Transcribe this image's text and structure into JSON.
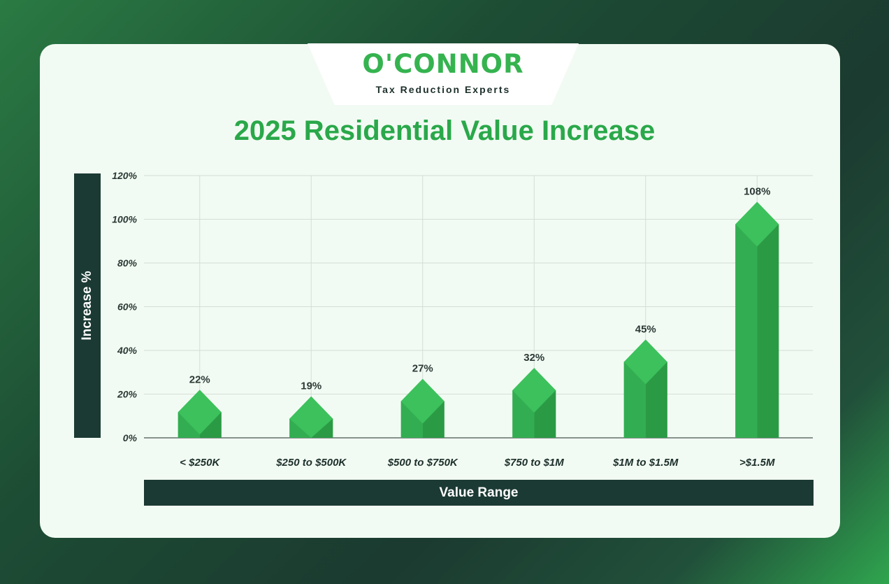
{
  "brand": {
    "name": "O'CONNOR",
    "tagline": "Tax Reduction Experts"
  },
  "colors": {
    "accent": "#35b34f",
    "bar_light": "#3cc15c",
    "bar_dark": "#2b9a45",
    "label_bg": "#1b3a33"
  },
  "chart_data": {
    "type": "bar",
    "title": "2025 Residential Value Increase",
    "xlabel": "Value Range",
    "ylabel": "Increase %",
    "categories": [
      "< $250K",
      "$250 to $500K",
      "$500 to $750K",
      "$750 to $1M",
      "$1M to $1.5M",
      ">$1.5M"
    ],
    "values": [
      22,
      19,
      27,
      32,
      45,
      108
    ],
    "value_labels": [
      "22%",
      "19%",
      "27%",
      "32%",
      "45%",
      "108%"
    ],
    "ylim": [
      0,
      120
    ],
    "yticks": [
      "0%",
      "20%",
      "40%",
      "60%",
      "80%",
      "100%",
      "120%"
    ],
    "grid": true
  }
}
